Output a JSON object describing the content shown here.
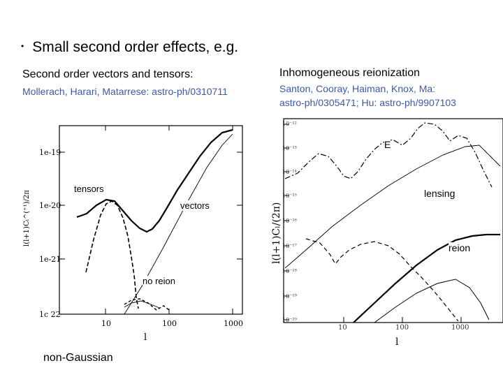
{
  "slide": {
    "bullet": "Small second order effects, e.g.",
    "left": {
      "heading": "Second order vectors and tensors:",
      "citation": "Mollerach, Harari, Matarrese: astro-ph/0310711",
      "labels": {
        "tensors": "tensors",
        "vectors": "vectors",
        "no_reion": "no reion"
      },
      "footer": "non-Gaussian"
    },
    "right": {
      "heading": "Inhomogeneous reionization",
      "citation_line1": "Santon, Cooray, Haiman, Knox, Ma:",
      "citation_line2": "astro-ph/0305471; Hu: astro-ph/9907103",
      "labels": {
        "E": "E",
        "lensing": "lensing",
        "reion": "reion"
      }
    }
  },
  "left_plot": {
    "xlabel": "l",
    "ylabel": "l(l+1)Cₗ^(⁺¹)/2π",
    "xticks": [
      "10",
      "100",
      "1000"
    ],
    "yticks": [
      "1e-19",
      "1e-20",
      "1e-21",
      "1c 22"
    ]
  },
  "right_plot": {
    "xlabel": "l",
    "ylabel": "l(l+1)Cₗ/(2π)",
    "xticks": [
      "10",
      "100",
      "1000"
    ],
    "yticks": [
      "10⁻¹²",
      "10⁻¹³",
      "10⁻¹⁴",
      "10⁻¹⁵",
      "10⁻¹⁶",
      "10⁻¹⁷",
      "10⁻¹⁸",
      "10⁻¹⁹",
      "10⁻²⁰"
    ]
  }
}
